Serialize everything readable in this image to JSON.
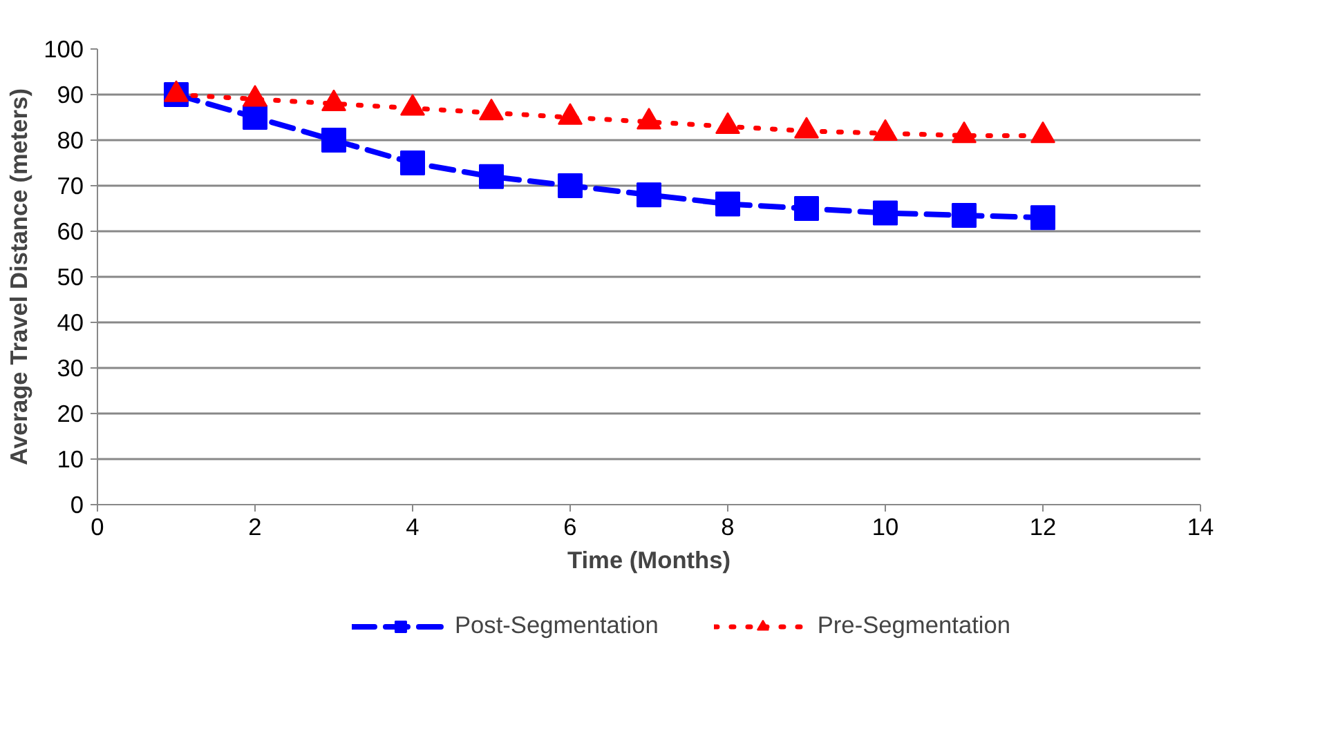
{
  "chart_data": {
    "type": "line",
    "xlabel": "Time (Months)",
    "ylabel": "Average Travel Distance (meters)",
    "x": [
      1,
      2,
      3,
      4,
      5,
      6,
      7,
      8,
      9,
      10,
      11,
      12
    ],
    "series": [
      {
        "name": "Post-Segmentation",
        "color": "#0000ff",
        "marker": "square",
        "line_style": "dashed",
        "values": [
          90,
          85,
          80,
          75,
          72,
          70,
          68,
          66,
          65,
          64,
          63.5,
          63
        ]
      },
      {
        "name": "Pre-Segmentation",
        "color": "#ff0000",
        "marker": "triangle",
        "line_style": "dotted",
        "values": [
          90,
          89,
          88,
          87,
          86,
          85,
          84,
          83,
          82,
          81.5,
          81,
          81
        ]
      }
    ],
    "xlim": [
      0,
      14
    ],
    "xticks": [
      0,
      2,
      4,
      6,
      8,
      10,
      12,
      14
    ],
    "ylim": [
      0,
      100
    ],
    "yticks": [
      0,
      10,
      20,
      30,
      40,
      50,
      60,
      70,
      80,
      90,
      100
    ],
    "grid": "y",
    "legend": "bottom"
  }
}
